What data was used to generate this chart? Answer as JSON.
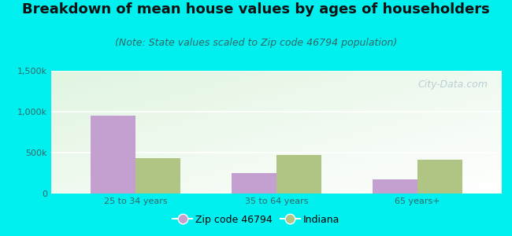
{
  "title": "Breakdown of mean house values by ages of householders",
  "subtitle": "(Note: State values scaled to Zip code 46794 population)",
  "categories": [
    "25 to 34 years",
    "35 to 64 years",
    "65 years+"
  ],
  "zip_values": [
    950000,
    250000,
    175000
  ],
  "indiana_values": [
    430000,
    470000,
    410000
  ],
  "ylim": [
    0,
    1500000
  ],
  "yticks": [
    0,
    500000,
    1000000,
    1500000
  ],
  "ytick_labels": [
    "0",
    "500k",
    "1,000k",
    "1,500k"
  ],
  "zip_color": "#c4a0d0",
  "indiana_color": "#b0c484",
  "background_color": "#00f0f0",
  "legend_zip_label": "Zip code 46794",
  "legend_indiana_label": "Indiana",
  "bar_width": 0.32,
  "title_fontsize": 13,
  "subtitle_fontsize": 9,
  "tick_fontsize": 8,
  "xtick_fontsize": 8,
  "watermark_text": "City-Data.com",
  "watermark_color": "#b0c8d0"
}
